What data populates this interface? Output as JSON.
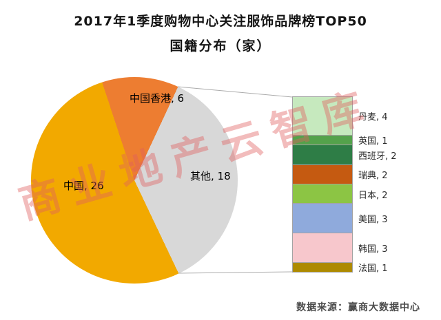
{
  "title": {
    "line1": "2017年1季度购物中心关注服饰品牌榜TOP50",
    "line2": "国籍分布（家）"
  },
  "watermark_text": "商业地产云智库",
  "source_text": "数据来源：赢商大数据中心",
  "chart_data": {
    "type": "pie",
    "subtype": "bar-of-pie",
    "title": "2017年1季度购物中心关注服饰品牌榜TOP50 国籍分布（家）",
    "unit": "家",
    "total": 50,
    "start_angle_deg": 25,
    "direction": "clockwise",
    "slices": [
      {
        "label": "其他",
        "value": 18,
        "color": "#D8D8D8"
      },
      {
        "label": "中国",
        "value": 26,
        "color": "#F2A900"
      },
      {
        "label": "中国香港",
        "value": 6,
        "color": "#ED7D31"
      }
    ],
    "breakout": {
      "parent_label": "其他",
      "total": 18,
      "segments": [
        {
          "label": "丹麦",
          "value": 4,
          "color": "#C6E9BE"
        },
        {
          "label": "英国",
          "value": 1,
          "color": "#54A24B"
        },
        {
          "label": "西班牙",
          "value": 2,
          "color": "#2E7D46"
        },
        {
          "label": "瑞典",
          "value": 2,
          "color": "#C55A11"
        },
        {
          "label": "日本",
          "value": 2,
          "color": "#8CC544"
        },
        {
          "label": "美国",
          "value": 3,
          "color": "#8FAADC"
        },
        {
          "label": "韩国",
          "value": 3,
          "color": "#F7C7CC"
        },
        {
          "label": "法国",
          "value": 1,
          "color": "#AD8A00"
        }
      ]
    }
  }
}
